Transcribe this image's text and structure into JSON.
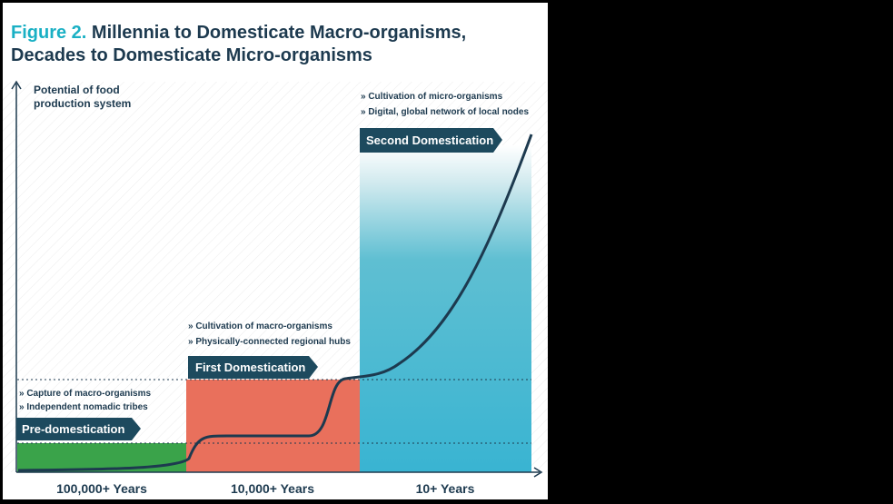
{
  "title": {
    "figure": "Figure 2.",
    "lines": [
      "Millennia to Domesticate Macro-organisms,",
      "Decades to Domesticate Micro-organisms"
    ]
  },
  "axis_label": [
    "Potential of food",
    "production system"
  ],
  "stages": [
    {
      "name": "Pre-domestication",
      "bullets": [
        "» Capture of macro-organisms",
        "» Independent nomadic tribes"
      ],
      "period": "100,000+ Years"
    },
    {
      "name": "First Domestication",
      "bullets": [
        "» Cultivation of macro-organisms",
        "» Physically-connected regional hubs"
      ],
      "period": "10,000+ Years"
    },
    {
      "name": "Second Domestication",
      "bullets": [
        "» Cultivation of micro-organisms",
        "» Digital, global network of local nodes"
      ],
      "period": "10+ Years"
    }
  ]
}
